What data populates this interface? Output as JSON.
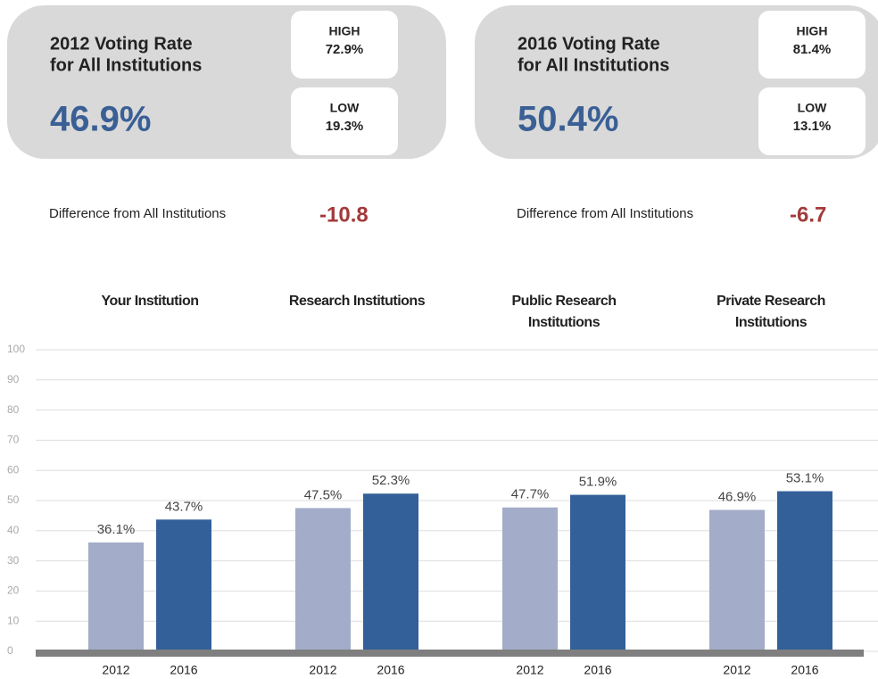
{
  "cards": [
    {
      "title": [
        "2012 Voting Rate",
        "for All Institutions"
      ],
      "rate": "46.9%",
      "high_label": "HIGH",
      "high": "72.9%",
      "low_label": "LOW",
      "low": "19.3%",
      "difference_label": "Difference from All Institutions",
      "difference": "-10.8"
    },
    {
      "title": [
        "2016 Voting Rate",
        "for All Institutions"
      ],
      "rate": "50.4%",
      "high_label": "HIGH",
      "high": "81.4%",
      "low_label": "LOW",
      "low": "13.1%",
      "difference_label": "Difference from All Institutions",
      "difference": "-6.7"
    }
  ],
  "chart_data": {
    "type": "grouped_bar",
    "categories": [
      [
        "Your Institution"
      ],
      [
        "Research Institutions"
      ],
      [
        "Public Research",
        "Institutions"
      ],
      [
        "Private Research",
        "Institutions"
      ]
    ],
    "series": [
      {
        "name": "2012",
        "color": "#a3acc8",
        "values": [
          36.1,
          47.5,
          47.7,
          46.9
        ],
        "value_labels": [
          "36.1%",
          "47.5%",
          "47.7%",
          "46.9%"
        ]
      },
      {
        "name": "2016",
        "color": "#34609a",
        "values": [
          43.7,
          52.3,
          51.9,
          53.1
        ],
        "value_labels": [
          "43.7%",
          "52.3%",
          "51.9%",
          "53.1%"
        ]
      }
    ],
    "ylim": [
      0,
      100
    ],
    "yticks": [
      0,
      10,
      20,
      30,
      40,
      50,
      60,
      70,
      80,
      90,
      100
    ],
    "grid": true
  }
}
